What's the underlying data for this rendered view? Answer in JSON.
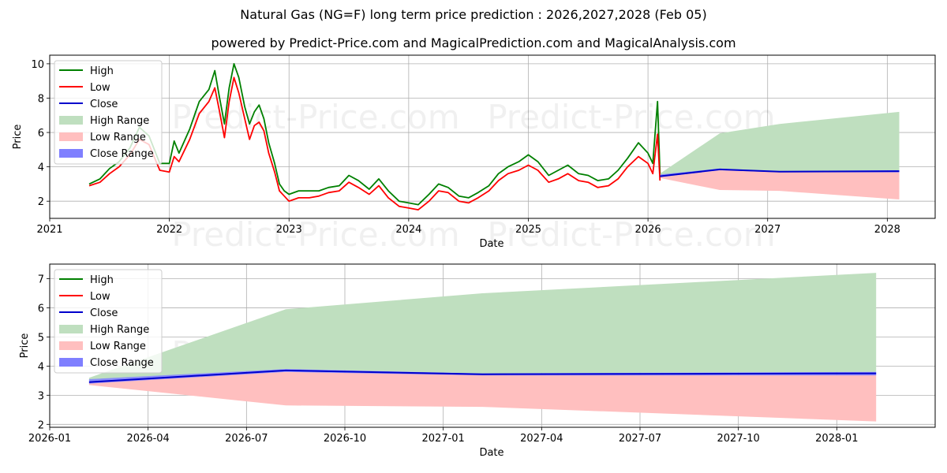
{
  "title_line1": "Natural Gas (NG=F) long term price prediction : 2026,2027,2028 (Feb 05)",
  "title_line2": "powered by Predict-Price.com and MagicalPrediction.com and MagicalAnalysis.com",
  "watermark": "Predict-Price.com",
  "colors": {
    "high": "#008000",
    "low": "#ff0000",
    "close": "#0000cc",
    "high_range": "#bfdfbf",
    "low_range": "#ffbfbf",
    "close_range": "#7f7fff",
    "grid": "#b0b0b0"
  },
  "chart_data": [
    {
      "type": "line",
      "name": "top",
      "xlabel": "Date",
      "ylabel": "Price",
      "xlim": [
        2021.0,
        2028.4
      ],
      "ylim": [
        1.0,
        10.5
      ],
      "xticks": [
        2021,
        2022,
        2023,
        2024,
        2025,
        2026,
        2027,
        2028
      ],
      "xtick_labels": [
        "2021",
        "2022",
        "2023",
        "2024",
        "2025",
        "2026",
        "2027",
        "2028"
      ],
      "yticks": [
        2,
        4,
        6,
        8,
        10
      ],
      "ytick_labels": [
        "2",
        "4",
        "6",
        "8",
        "10"
      ],
      "legend": [
        "High",
        "Low",
        "Close",
        "High Range",
        "Low Range",
        "Close Range"
      ],
      "grid": true,
      "historical": {
        "x": [
          2021.33,
          2021.42,
          2021.5,
          2021.58,
          2021.67,
          2021.75,
          2021.83,
          2021.92,
          2022.0,
          2022.04,
          2022.08,
          2022.17,
          2022.25,
          2022.33,
          2022.38,
          2022.42,
          2022.46,
          2022.5,
          2022.54,
          2022.58,
          2022.63,
          2022.67,
          2022.71,
          2022.75,
          2022.79,
          2022.83,
          2022.88,
          2022.92,
          2022.96,
          2023.0,
          2023.08,
          2023.17,
          2023.25,
          2023.33,
          2023.42,
          2023.5,
          2023.58,
          2023.67,
          2023.75,
          2023.83,
          2023.92,
          2024.0,
          2024.08,
          2024.17,
          2024.25,
          2024.33,
          2024.42,
          2024.5,
          2024.58,
          2024.67,
          2024.75,
          2024.83,
          2024.92,
          2025.0,
          2025.08,
          2025.17,
          2025.25,
          2025.33,
          2025.42,
          2025.5,
          2025.58,
          2025.67,
          2025.75,
          2025.83,
          2025.92,
          2026.0,
          2026.04,
          2026.08,
          2026.1
        ],
        "high": [
          3.0,
          3.3,
          3.9,
          4.3,
          5.1,
          6.3,
          5.8,
          4.2,
          4.2,
          5.5,
          4.8,
          6.2,
          7.8,
          8.5,
          9.6,
          8.0,
          6.5,
          8.6,
          10.0,
          9.2,
          7.5,
          6.5,
          7.2,
          7.6,
          6.8,
          5.4,
          4.2,
          3.0,
          2.6,
          2.4,
          2.6,
          2.6,
          2.6,
          2.8,
          2.9,
          3.5,
          3.2,
          2.7,
          3.3,
          2.6,
          2.0,
          1.9,
          1.8,
          2.4,
          3.0,
          2.8,
          2.3,
          2.2,
          2.5,
          2.9,
          3.6,
          4.0,
          4.3,
          4.7,
          4.3,
          3.5,
          3.8,
          4.1,
          3.6,
          3.5,
          3.2,
          3.3,
          3.8,
          4.5,
          5.4,
          4.8,
          4.2,
          7.8,
          3.6
        ],
        "low": [
          2.9,
          3.1,
          3.6,
          4.0,
          4.7,
          5.6,
          5.3,
          3.8,
          3.7,
          4.6,
          4.3,
          5.6,
          7.1,
          7.8,
          8.6,
          7.2,
          5.7,
          7.8,
          9.2,
          8.3,
          6.8,
          5.6,
          6.4,
          6.6,
          6.1,
          4.8,
          3.7,
          2.6,
          2.3,
          2.0,
          2.2,
          2.2,
          2.3,
          2.5,
          2.6,
          3.1,
          2.8,
          2.4,
          2.9,
          2.2,
          1.7,
          1.6,
          1.5,
          2.0,
          2.6,
          2.5,
          2.0,
          1.9,
          2.2,
          2.6,
          3.2,
          3.6,
          3.8,
          4.1,
          3.8,
          3.1,
          3.3,
          3.6,
          3.2,
          3.1,
          2.8,
          2.9,
          3.3,
          4.0,
          4.6,
          4.2,
          3.6,
          5.9,
          3.2
        ]
      },
      "forecast": {
        "x": [
          2026.1,
          2026.6,
          2027.1,
          2028.1
        ],
        "high_range_upper": [
          3.6,
          5.95,
          6.5,
          7.2
        ],
        "high_range_lower": [
          3.5,
          3.9,
          3.75,
          3.8
        ],
        "low_range_upper": [
          3.45,
          3.8,
          3.7,
          3.7
        ],
        "low_range_lower": [
          3.35,
          2.65,
          2.6,
          2.1
        ],
        "close_range_upper": [
          3.55,
          3.9,
          3.75,
          3.8
        ],
        "close_range_lower": [
          3.4,
          3.8,
          3.68,
          3.68
        ],
        "close": [
          3.45,
          3.85,
          3.72,
          3.75
        ]
      }
    },
    {
      "type": "line",
      "name": "bottom",
      "xlabel": "Date",
      "ylabel": "Price",
      "xlim": [
        2026.0,
        2028.25
      ],
      "ylim": [
        1.9,
        7.5
      ],
      "xticks": [
        2026.0,
        2026.25,
        2026.5,
        2026.75,
        2027.0,
        2027.25,
        2027.5,
        2027.75,
        2028.0
      ],
      "xtick_labels": [
        "2026-01",
        "2026-04",
        "2026-07",
        "2026-10",
        "2027-01",
        "2027-04",
        "2027-07",
        "2027-10",
        "2028-01"
      ],
      "yticks": [
        2,
        3,
        4,
        5,
        6,
        7
      ],
      "ytick_labels": [
        "2",
        "3",
        "4",
        "5",
        "6",
        "7"
      ],
      "legend": [
        "High",
        "Low",
        "Close",
        "High Range",
        "Low Range",
        "Close Range"
      ],
      "grid": true,
      "forecast": {
        "x": [
          2026.1,
          2026.6,
          2027.1,
          2028.1
        ],
        "high_range_upper": [
          3.6,
          5.95,
          6.5,
          7.2
        ],
        "high_range_lower": [
          3.5,
          3.9,
          3.75,
          3.8
        ],
        "low_range_upper": [
          3.45,
          3.8,
          3.7,
          3.7
        ],
        "low_range_lower": [
          3.35,
          2.65,
          2.6,
          2.1
        ],
        "close_range_upper": [
          3.55,
          3.9,
          3.75,
          3.8
        ],
        "close_range_lower": [
          3.4,
          3.8,
          3.68,
          3.68
        ],
        "close": [
          3.45,
          3.85,
          3.72,
          3.75
        ]
      }
    }
  ]
}
